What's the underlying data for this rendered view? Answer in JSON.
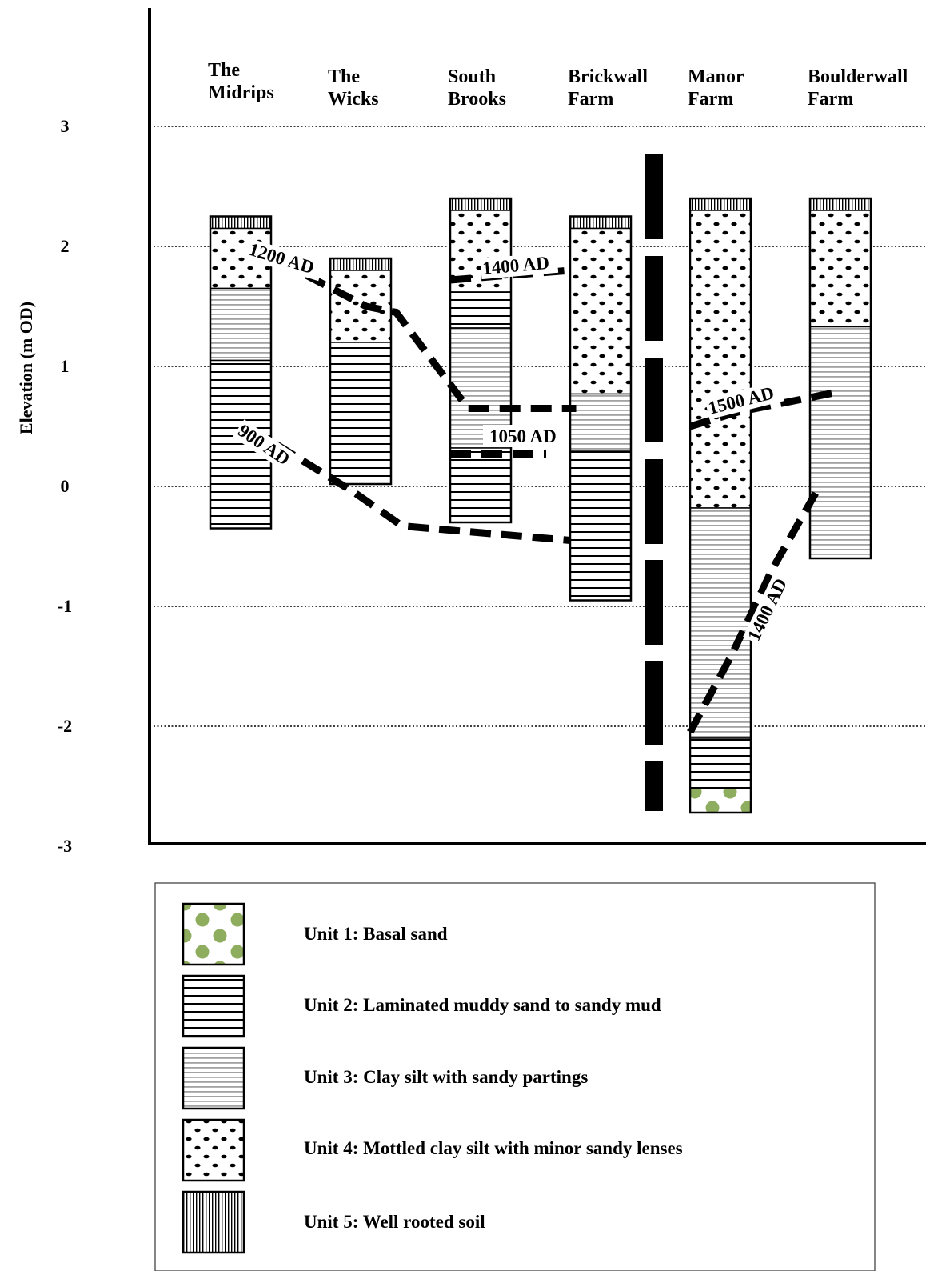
{
  "axis": {
    "label": "Elevation (m OD)",
    "ticks": [
      "3",
      "2",
      "1",
      "0",
      "-1",
      "-2",
      "-3"
    ]
  },
  "sites": [
    {
      "name": [
        "The",
        "Midrips"
      ],
      "top": 2.25,
      "base": -0.35,
      "layers": [
        {
          "unit": 5,
          "top": 2.25,
          "base": 2.15
        },
        {
          "unit": 4,
          "top": 2.15,
          "base": 1.65
        },
        {
          "unit": 3,
          "top": 1.65,
          "base": 1.05
        },
        {
          "unit": 2,
          "top": 1.05,
          "base": -0.35
        }
      ]
    },
    {
      "name": [
        "The",
        "Wicks"
      ],
      "top": 1.9,
      "base": 0.02,
      "layers": [
        {
          "unit": 5,
          "top": 1.9,
          "base": 1.8
        },
        {
          "unit": 4,
          "top": 1.8,
          "base": 1.2
        },
        {
          "unit": 2,
          "top": 1.2,
          "base": 0.02
        }
      ]
    },
    {
      "name": [
        "South",
        "Brooks"
      ],
      "top": 2.4,
      "base": -0.3,
      "layers": [
        {
          "unit": 5,
          "top": 2.4,
          "base": 2.3
        },
        {
          "unit": 4,
          "top": 2.3,
          "base": 1.62
        },
        {
          "unit": 2,
          "top": 1.62,
          "base": 1.32
        },
        {
          "unit": 3,
          "top": 1.32,
          "base": 0.32
        },
        {
          "unit": 2,
          "top": 0.32,
          "base": -0.3
        }
      ]
    },
    {
      "name": [
        "Brickwall",
        "Farm"
      ],
      "top": 2.25,
      "base": -0.95,
      "layers": [
        {
          "unit": 5,
          "top": 2.25,
          "base": 2.15
        },
        {
          "unit": 4,
          "top": 2.15,
          "base": 0.77
        },
        {
          "unit": 3,
          "top": 0.77,
          "base": 0.3
        },
        {
          "unit": 2,
          "top": 0.3,
          "base": -0.95
        }
      ]
    },
    {
      "name": [
        "Manor",
        "Farm"
      ],
      "top": 2.4,
      "base": -2.72,
      "layers": [
        {
          "unit": 5,
          "top": 2.4,
          "base": 2.3
        },
        {
          "unit": 4,
          "top": 2.3,
          "base": -0.18
        },
        {
          "unit": 3,
          "top": -0.18,
          "base": -2.1
        },
        {
          "unit": 2,
          "top": -2.1,
          "base": -2.52
        },
        {
          "unit": 1,
          "top": -2.52,
          "base": -2.72
        }
      ]
    },
    {
      "name": [
        "Boulderwall",
        "Farm"
      ],
      "top": 2.4,
      "base": -0.6,
      "layers": [
        {
          "unit": 5,
          "top": 2.4,
          "base": 2.3
        },
        {
          "unit": 4,
          "top": 2.3,
          "base": 1.33
        },
        {
          "unit": 3,
          "top": 1.33,
          "base": -0.6
        }
      ]
    }
  ],
  "date_lines": [
    {
      "label": "1200 AD",
      "points": [
        [
          1.8,
          1.76
        ],
        [
          2.3,
          1.5
        ],
        [
          2.55,
          1.45
        ],
        [
          3.15,
          0.65
        ],
        [
          3.3,
          0.65
        ],
        [
          4.05,
          0.65
        ]
      ]
    },
    {
      "label": "1400 AD",
      "points": [
        [
          3.0,
          1.72
        ],
        [
          4.0,
          1.8
        ]
      ]
    },
    {
      "label": "1050 AD",
      "points": [
        [
          3.0,
          0.27
        ],
        [
          3.8,
          0.27
        ]
      ]
    },
    {
      "label": "900 AD",
      "points": [
        [
          1.55,
          0.35
        ],
        [
          2.2,
          -0.05
        ],
        [
          2.6,
          -0.33
        ],
        [
          4.0,
          -0.45
        ]
      ]
    },
    {
      "label": "1500 AD",
      "points": [
        [
          5.0,
          0.5
        ],
        [
          5.4,
          0.62
        ],
        [
          6.2,
          0.78
        ]
      ]
    },
    {
      "label": "1400 AD",
      "points": [
        [
          5.0,
          -2.05
        ],
        [
          5.35,
          -1.4
        ],
        [
          5.68,
          -0.7
        ],
        [
          6.05,
          -0.05
        ]
      ]
    }
  ],
  "legend": [
    {
      "unit": 1,
      "label": "Unit 1: Basal sand"
    },
    {
      "unit": 2,
      "label": "Unit 2: Laminated muddy sand to sandy mud"
    },
    {
      "unit": 3,
      "label": "Unit 3: Clay silt with sandy partings"
    },
    {
      "unit": 4,
      "label": "Unit 4: Mottled clay silt with minor sandy lenses"
    },
    {
      "unit": 5,
      "label": "Unit 5: Well rooted soil"
    }
  ],
  "colors": {
    "basal_sand_dots": "#8fad5e",
    "ink": "#000000",
    "background": "#ffffff"
  }
}
